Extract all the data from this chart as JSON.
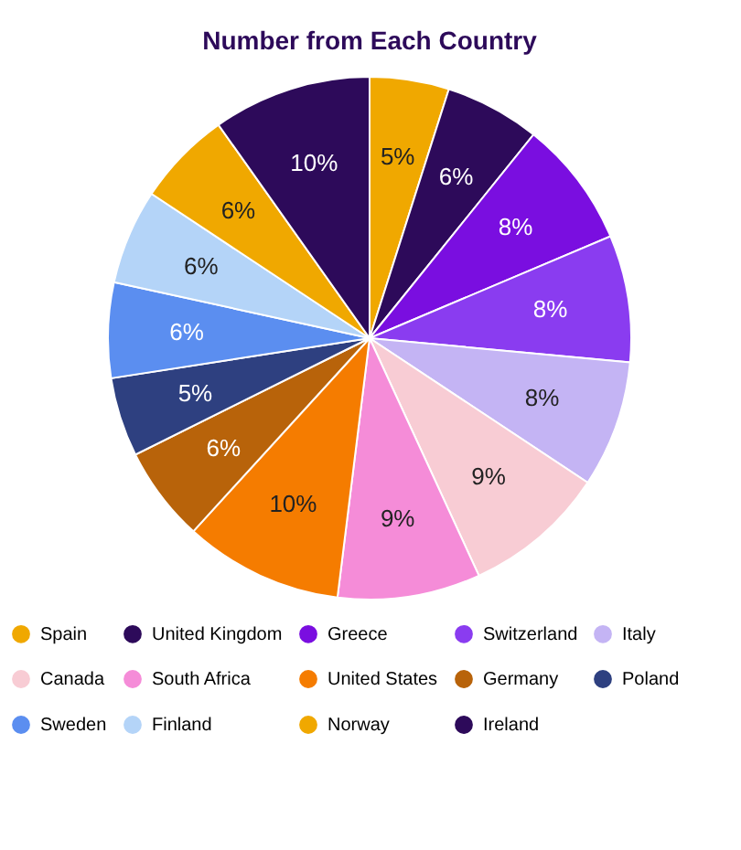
{
  "chart_data": {
    "type": "pie",
    "title": "Number from Each Country",
    "categories": [
      "Spain",
      "United Kingdom",
      "Greece",
      "Switzerland",
      "Italy",
      "Canada",
      "South Africa",
      "United States",
      "Germany",
      "Poland",
      "Sweden",
      "Finland",
      "Norway",
      "Ireland"
    ],
    "values": [
      5,
      6,
      8,
      8,
      8,
      9,
      9,
      10,
      6,
      5,
      6,
      6,
      6,
      10
    ],
    "value_labels": [
      "5%",
      "6%",
      "8%",
      "8%",
      "8%",
      "9%",
      "9%",
      "10%",
      "6%",
      "5%",
      "6%",
      "6%",
      "6%",
      "10%"
    ],
    "colors": [
      "#f0a800",
      "#2d0a5a",
      "#7a0ee0",
      "#8a3cf0",
      "#c4b4f4",
      "#f8ccd4",
      "#f58cd8",
      "#f57c00",
      "#b8630a",
      "#2e4080",
      "#5b8ef0",
      "#b4d4f8",
      "#f0a800",
      "#2d0a5a"
    ],
    "legend": "bottom"
  }
}
